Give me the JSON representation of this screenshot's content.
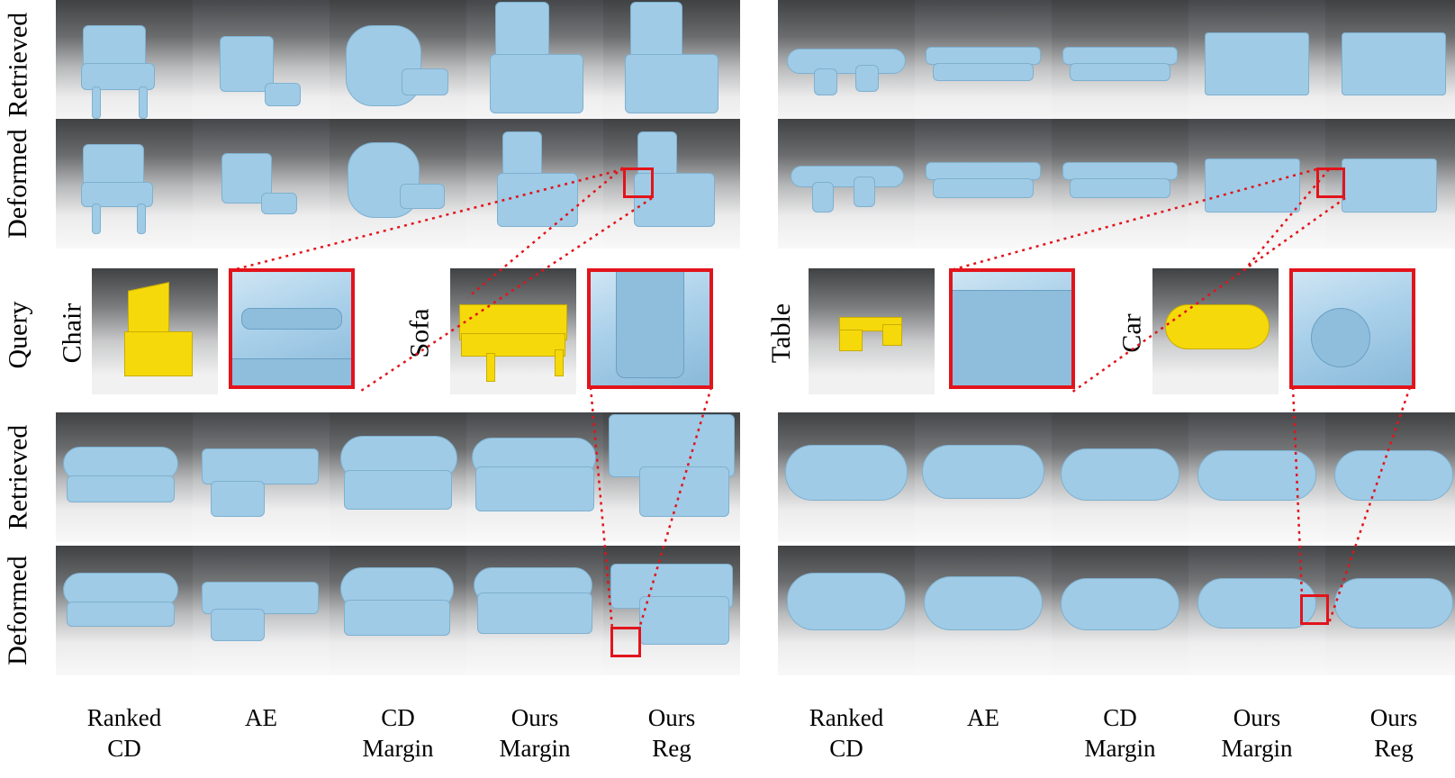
{
  "row_labels": {
    "retrieved": "Retrieved",
    "deformed": "Deformed",
    "query": "Query"
  },
  "query_names": {
    "chair": "Chair",
    "sofa": "Sofa",
    "table": "Table",
    "car": "Car"
  },
  "columns": [
    {
      "line1": "Ranked",
      "line2": "CD"
    },
    {
      "line1": "AE",
      "line2": ""
    },
    {
      "line1": "CD",
      "line2": "Margin"
    },
    {
      "line1": "Ours",
      "line2": "Margin"
    },
    {
      "line1": "Ours",
      "line2": "Reg"
    }
  ],
  "colors": {
    "shape": "#9fcbe6",
    "query_shape": "#f5d90a",
    "highlight": "#e2141b"
  }
}
